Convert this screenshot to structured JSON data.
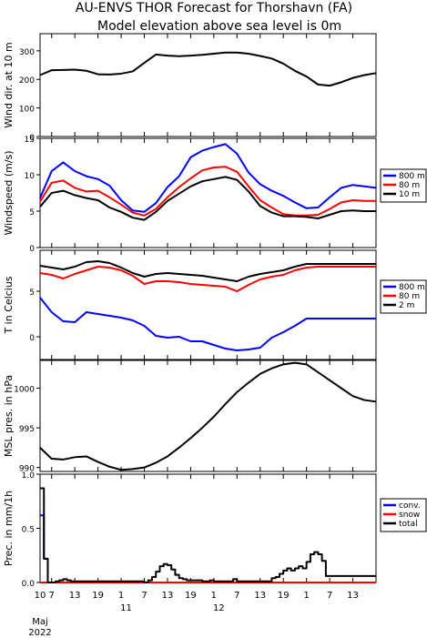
{
  "title_line1": "AU-ENVS THOR Forecast for Thorshavn (FA)",
  "title_line2": "Model elevation above sea level is    0m",
  "colors": {
    "blue": "#0000ff",
    "red": "#ff0000",
    "black": "#000000"
  },
  "x_axis": {
    "hour_ticks": [
      "10",
      "7",
      "13",
      "19",
      "1",
      "7",
      "13",
      "19",
      "1",
      "7",
      "13",
      "19",
      "1",
      "7",
      "13"
    ],
    "day_labels": [
      "11",
      "12"
    ],
    "month_label": "Maj",
    "year_label": "2022",
    "range_hours": [
      0,
      87
    ],
    "tick_hours": [
      0,
      3,
      9,
      15,
      21,
      27,
      33,
      39,
      45,
      51,
      57,
      63,
      69,
      75,
      81,
      87
    ]
  },
  "chart_data": [
    {
      "type": "line",
      "ylabel": "Wind dir. at 10 m",
      "ylim": [
        0,
        360
      ],
      "yticks": [
        0,
        100,
        200,
        300
      ],
      "series": [
        {
          "color": "#000000",
          "x": [
            0,
            3,
            6,
            9,
            12,
            15,
            18,
            21,
            24,
            27,
            30,
            33,
            36,
            39,
            42,
            45,
            48,
            51,
            54,
            57,
            60,
            63,
            66,
            69,
            72,
            75,
            78,
            81,
            84,
            87
          ],
          "values": [
            215,
            232,
            233,
            234,
            230,
            218,
            217,
            220,
            228,
            258,
            287,
            283,
            281,
            283,
            286,
            290,
            294,
            294,
            290,
            282,
            273,
            255,
            230,
            210,
            182,
            178,
            190,
            205,
            215,
            222
          ]
        }
      ]
    },
    {
      "type": "line",
      "ylabel": "Windspeed (m/s)",
      "ylim": [
        0,
        15
      ],
      "yticks": [
        0,
        5,
        10,
        15
      ],
      "legend": [
        "800 m",
        "80 m",
        "10 m"
      ],
      "series": [
        {
          "color": "#0000ff",
          "x": [
            0,
            3,
            6,
            9,
            12,
            15,
            18,
            21,
            24,
            27,
            30,
            33,
            36,
            39,
            42,
            45,
            48,
            51,
            54,
            57,
            60,
            63,
            66,
            69,
            72,
            75,
            78,
            81,
            84,
            87
          ],
          "values": [
            6.8,
            10.5,
            11.7,
            10.5,
            9.8,
            9.4,
            8.5,
            6.5,
            5.1,
            4.9,
            6.1,
            8.3,
            9.8,
            12.4,
            13.3,
            13.8,
            14.2,
            12.9,
            10.3,
            8.7,
            7.8,
            7.1,
            6.2,
            5.4,
            5.5,
            6.9,
            8.2,
            8.6,
            8.4,
            8.2
          ]
        },
        {
          "color": "#ff0000",
          "x": [
            0,
            3,
            6,
            9,
            12,
            15,
            18,
            21,
            24,
            27,
            30,
            33,
            36,
            39,
            42,
            45,
            48,
            51,
            54,
            57,
            60,
            63,
            66,
            69,
            72,
            75,
            78,
            81,
            84,
            87
          ],
          "values": [
            6.3,
            8.9,
            9.2,
            8.2,
            7.7,
            7.8,
            6.9,
            5.9,
            4.8,
            4.4,
            5.3,
            6.9,
            8.3,
            9.5,
            10.6,
            11.0,
            11.1,
            10.4,
            8.4,
            6.5,
            5.5,
            4.6,
            4.4,
            4.4,
            4.5,
            5.3,
            6.2,
            6.5,
            6.4,
            6.4
          ]
        },
        {
          "color": "#000000",
          "x": [
            0,
            3,
            6,
            9,
            12,
            15,
            18,
            21,
            24,
            27,
            30,
            33,
            36,
            39,
            42,
            45,
            48,
            51,
            54,
            57,
            60,
            63,
            66,
            69,
            72,
            75,
            78,
            81,
            84,
            87
          ],
          "values": [
            5.6,
            7.5,
            7.8,
            7.2,
            6.8,
            6.5,
            5.5,
            4.9,
            4.1,
            3.8,
            4.9,
            6.4,
            7.4,
            8.4,
            9.1,
            9.4,
            9.7,
            9.3,
            7.7,
            5.7,
            4.8,
            4.3,
            4.3,
            4.2,
            4.0,
            4.5,
            5.0,
            5.1,
            5.0,
            5.0
          ]
        }
      ]
    },
    {
      "type": "line",
      "ylabel": "T in Celcius",
      "ylim": [
        -2.5,
        9.5
      ],
      "yticks": [
        0,
        5
      ],
      "legend": [
        "800 m",
        "80 m",
        "2 m"
      ],
      "series": [
        {
          "color": "#0000ff",
          "x": [
            0,
            3,
            6,
            9,
            12,
            15,
            18,
            21,
            24,
            27,
            30,
            33,
            36,
            39,
            42,
            45,
            48,
            51,
            54,
            57,
            60,
            63,
            66,
            69,
            72,
            75,
            78,
            81,
            84,
            87
          ],
          "values": [
            4.3,
            2.7,
            1.7,
            1.6,
            2.7,
            2.5,
            2.3,
            2.1,
            1.8,
            1.2,
            0.1,
            -0.1,
            0.0,
            -0.5,
            -0.5,
            -0.9,
            -1.3,
            -1.5,
            -1.4,
            -1.2,
            -0.1,
            0.5,
            1.2,
            2.0,
            2.0,
            2.0,
            2.0,
            2.0,
            2.0,
            2.0
          ]
        },
        {
          "color": "#ff0000",
          "x": [
            0,
            3,
            6,
            9,
            12,
            15,
            18,
            21,
            24,
            27,
            30,
            33,
            36,
            39,
            42,
            45,
            48,
            51,
            54,
            57,
            60,
            63,
            66,
            69,
            72,
            75,
            78,
            81,
            84,
            87
          ],
          "values": [
            7.0,
            6.8,
            6.4,
            6.9,
            7.3,
            7.7,
            7.6,
            7.3,
            6.7,
            5.8,
            6.1,
            6.1,
            6.0,
            5.8,
            5.7,
            5.6,
            5.5,
            5.0,
            5.7,
            6.3,
            6.6,
            6.8,
            7.3,
            7.6,
            7.7,
            7.7,
            7.7,
            7.7,
            7.7,
            7.7
          ]
        },
        {
          "color": "#000000",
          "x": [
            0,
            3,
            6,
            9,
            12,
            15,
            18,
            21,
            24,
            27,
            30,
            33,
            36,
            39,
            42,
            45,
            48,
            51,
            54,
            57,
            60,
            63,
            66,
            69,
            72,
            75,
            78,
            81,
            84,
            87
          ],
          "values": [
            7.8,
            7.6,
            7.4,
            7.7,
            8.2,
            8.3,
            8.1,
            7.6,
            7.0,
            6.6,
            6.9,
            7.0,
            6.9,
            6.8,
            6.7,
            6.5,
            6.3,
            6.1,
            6.6,
            6.9,
            7.1,
            7.3,
            7.7,
            8.0,
            8.0,
            8.0,
            8.0,
            8.0,
            8.0,
            8.0
          ]
        }
      ]
    },
    {
      "type": "line",
      "ylabel": "MSL pres. in hPa",
      "ylim": [
        989.5,
        1003.5
      ],
      "yticks": [
        990,
        995,
        1000
      ],
      "series": [
        {
          "color": "#000000",
          "x": [
            0,
            3,
            6,
            9,
            12,
            15,
            18,
            21,
            24,
            27,
            30,
            33,
            36,
            39,
            42,
            45,
            48,
            51,
            54,
            57,
            60,
            63,
            66,
            69,
            72,
            75,
            78,
            81,
            84,
            87
          ],
          "values": [
            992.5,
            991.1,
            991.0,
            991.3,
            991.4,
            990.7,
            990.1,
            989.7,
            989.8,
            990.0,
            990.6,
            991.4,
            992.5,
            993.7,
            995.0,
            996.4,
            998.0,
            999.5,
            1000.7,
            1001.8,
            1002.5,
            1003.0,
            1003.2,
            1003.0,
            1002.0,
            1001.0,
            1000.0,
            999.0,
            998.5,
            998.3
          ]
        }
      ]
    },
    {
      "type": "line",
      "ylabel": "Prec. in mm/1h",
      "ylim": [
        0,
        1.0
      ],
      "yticks": [
        0,
        0.5,
        1.0
      ],
      "ytick_labels": [
        "0.0",
        "0.5",
        "1.0"
      ],
      "legend": [
        "conv.",
        "snow",
        "total"
      ],
      "series": [
        {
          "color": "#0000ff",
          "x": [
            0,
            1,
            2,
            87
          ],
          "values": [
            0.62,
            0.22,
            0.0,
            0.0
          ]
        },
        {
          "color": "#ff0000",
          "x": [
            0,
            87
          ],
          "values": [
            0.0,
            0.0
          ]
        },
        {
          "color": "#000000",
          "x": [
            0,
            1,
            2,
            4,
            5,
            6,
            7,
            8,
            9,
            10,
            11,
            12,
            13,
            14,
            15,
            16,
            17,
            18,
            19,
            20,
            21,
            22,
            23,
            24,
            25,
            26,
            27,
            28,
            29,
            30,
            31,
            32,
            33,
            34,
            35,
            36,
            37,
            38,
            39,
            40,
            41,
            42,
            43,
            44,
            45,
            46,
            47,
            48,
            49,
            50,
            51,
            52,
            53,
            54,
            55,
            56,
            57,
            58,
            59,
            60,
            61,
            62,
            63,
            64,
            65,
            66,
            67,
            68,
            69,
            70,
            71,
            72,
            73,
            74,
            75,
            76,
            77,
            78,
            79,
            80,
            81,
            82,
            83,
            84,
            85,
            86,
            87
          ],
          "values": [
            0.87,
            0.22,
            0.0,
            0.01,
            0.02,
            0.03,
            0.02,
            0.01,
            0.01,
            0.01,
            0.01,
            0.01,
            0.01,
            0.01,
            0.01,
            0.01,
            0.01,
            0.01,
            0.01,
            0.01,
            0.01,
            0.01,
            0.01,
            0.01,
            0.01,
            0.01,
            0.0,
            0.02,
            0.05,
            0.1,
            0.15,
            0.17,
            0.16,
            0.12,
            0.07,
            0.04,
            0.03,
            0.02,
            0.02,
            0.02,
            0.02,
            0.01,
            0.01,
            0.02,
            0.01,
            0.01,
            0.01,
            0.01,
            0.01,
            0.03,
            0.01,
            0.01,
            0.01,
            0.01,
            0.01,
            0.01,
            0.01,
            0.01,
            0.01,
            0.04,
            0.05,
            0.08,
            0.11,
            0.13,
            0.11,
            0.13,
            0.15,
            0.13,
            0.19,
            0.26,
            0.28,
            0.26,
            0.2,
            0.06,
            0.06,
            0.06,
            0.06,
            0.06,
            0.06,
            0.06,
            0.06,
            0.06,
            0.06,
            0.06,
            0.06,
            0.06,
            0.06
          ]
        }
      ]
    }
  ]
}
